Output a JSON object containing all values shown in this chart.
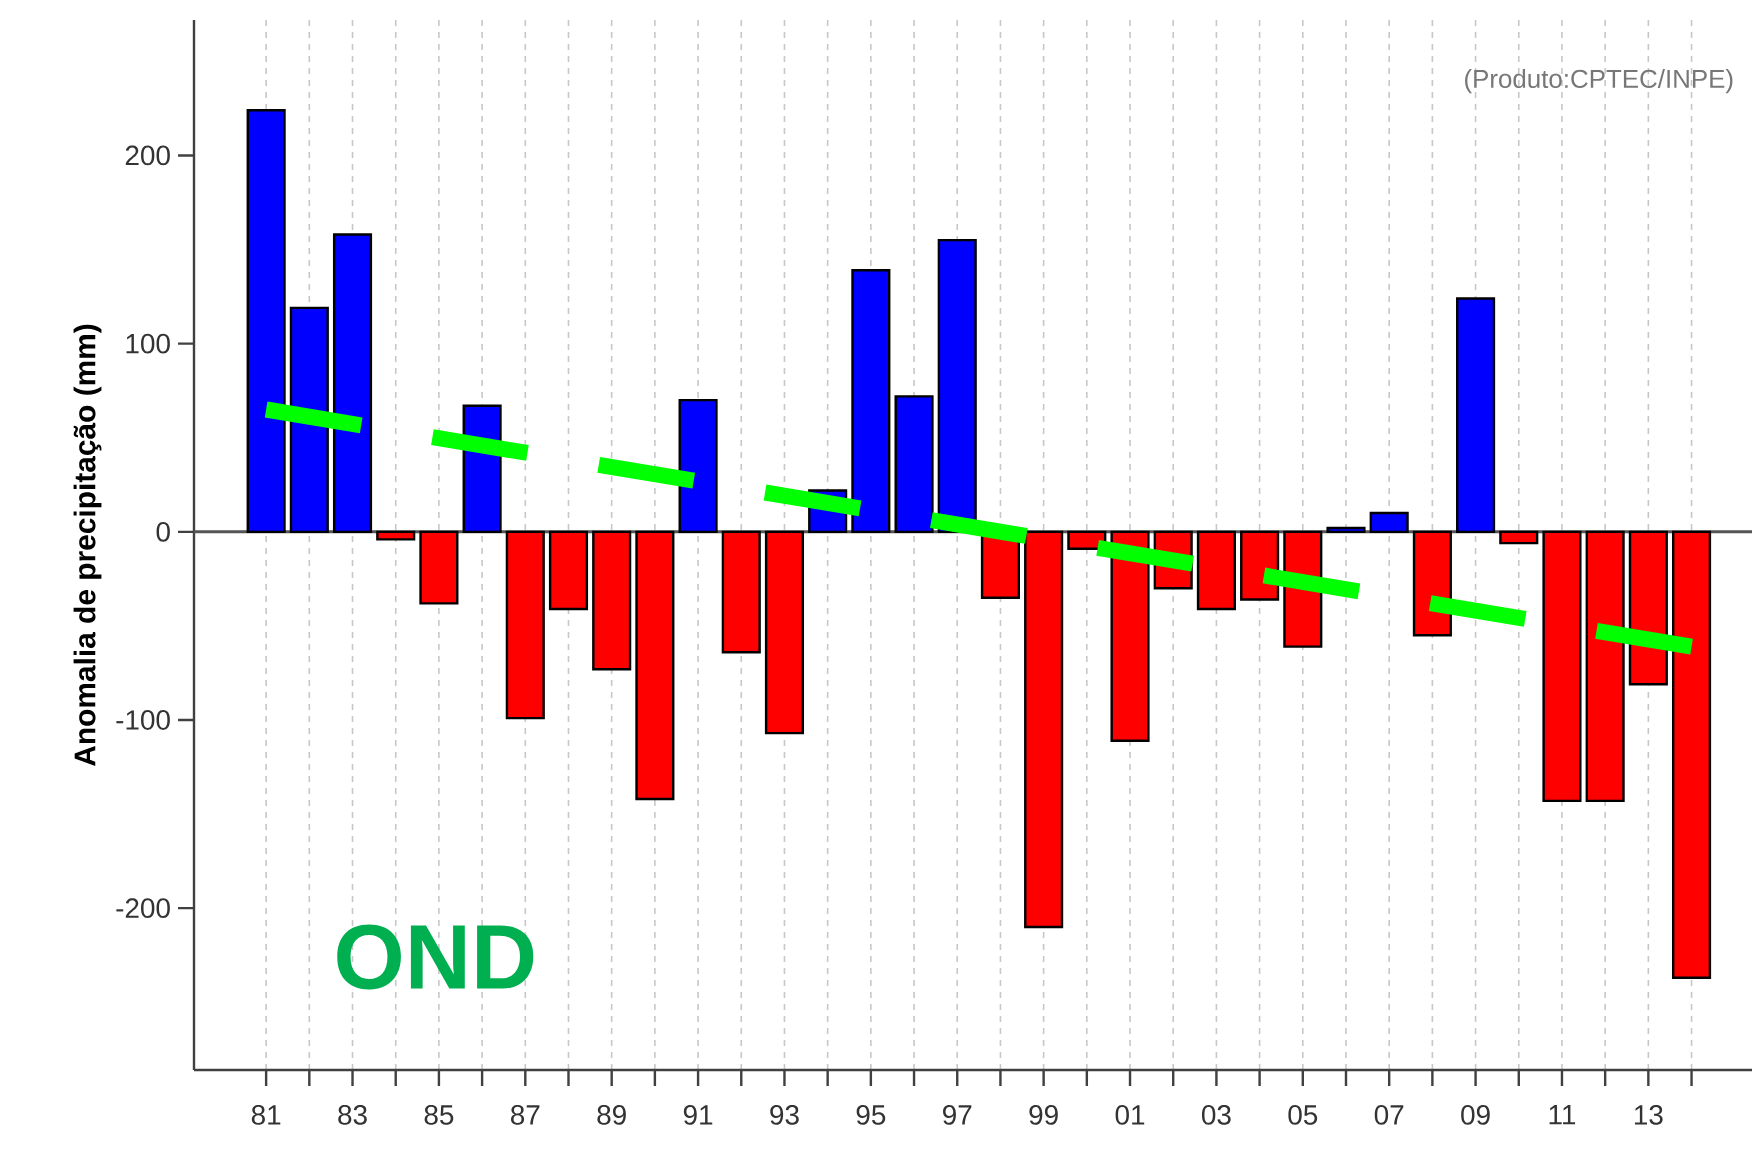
{
  "chart_data": {
    "type": "bar",
    "ylabel": "Anomalia de precipitação (mm)",
    "annotations": [
      "(Produto:CPTEC/INPE)",
      "OND"
    ],
    "x": [
      1981,
      1982,
      1983,
      1984,
      1985,
      1986,
      1987,
      1988,
      1989,
      1990,
      1991,
      1992,
      1993,
      1994,
      1995,
      1996,
      1997,
      1998,
      1999,
      2000,
      2001,
      2002,
      2003,
      2004,
      2005,
      2006,
      2007,
      2008,
      2009,
      2010,
      2011,
      2012,
      2013,
      2014
    ],
    "xlim": [
      1979.33,
      2015.4
    ],
    "xticks": [
      {
        "value": 1981,
        "label": "81"
      },
      {
        "value": 1982,
        "label": null
      },
      {
        "value": 1983,
        "label": "83"
      },
      {
        "value": 1984,
        "label": null
      },
      {
        "value": 1985,
        "label": "85"
      },
      {
        "value": 1986,
        "label": null
      },
      {
        "value": 1987,
        "label": "87"
      },
      {
        "value": 1988,
        "label": null
      },
      {
        "value": 1989,
        "label": "89"
      },
      {
        "value": 1990,
        "label": null
      },
      {
        "value": 1991,
        "label": "91"
      },
      {
        "value": 1992,
        "label": null
      },
      {
        "value": 1993,
        "label": "93"
      },
      {
        "value": 1994,
        "label": null
      },
      {
        "value": 1995,
        "label": "95"
      },
      {
        "value": 1996,
        "label": null
      },
      {
        "value": 1997,
        "label": "97"
      },
      {
        "value": 1998,
        "label": null
      },
      {
        "value": 1999,
        "label": "99"
      },
      {
        "value": 2000,
        "label": null
      },
      {
        "value": 2001,
        "label": "01"
      },
      {
        "value": 2002,
        "label": null
      },
      {
        "value": 2003,
        "label": "03"
      },
      {
        "value": 2004,
        "label": null
      },
      {
        "value": 2005,
        "label": "05"
      },
      {
        "value": 2006,
        "label": null
      },
      {
        "value": 2007,
        "label": "07"
      },
      {
        "value": 2008,
        "label": null
      },
      {
        "value": 2009,
        "label": "09"
      },
      {
        "value": 2010,
        "label": null
      },
      {
        "value": 2011,
        "label": "11"
      },
      {
        "value": 2012,
        "label": null
      },
      {
        "value": 2013,
        "label": "13"
      },
      {
        "value": 2014,
        "label": null
      }
    ],
    "ylim": [
      -286,
      272
    ],
    "yticks": [
      -200,
      -100,
      0,
      100,
      200
    ],
    "grid": "x",
    "ref_lines": [
      {
        "axis": "y",
        "value": 0,
        "color": "#555555"
      }
    ],
    "series": [
      {
        "colors": [
          "#0000ff",
          "#0000ff",
          "#0000ff",
          "#ff0000",
          "#ff0000",
          "#0000ff",
          "#ff0000",
          "#ff0000",
          "#ff0000",
          "#ff0000",
          "#0000ff",
          "#ff0000",
          "#ff0000",
          "#0000ff",
          "#0000ff",
          "#0000ff",
          "#0000ff",
          "#ff0000",
          "#ff0000",
          "#ff0000",
          "#ff0000",
          "#ff0000",
          "#ff0000",
          "#ff0000",
          "#ff0000",
          "#0000ff",
          "#0000ff",
          "#ff0000",
          "#0000ff",
          "#ff0000",
          "#ff0000",
          "#ff0000",
          "#ff0000",
          "#ff0000"
        ],
        "values": [
          224,
          119,
          158,
          -4,
          -38,
          67,
          -99,
          -41,
          -73,
          -142,
          70,
          -64,
          -107,
          22,
          139,
          72,
          155,
          -35,
          -210,
          -9,
          -111,
          -30,
          -41,
          -36,
          -61,
          2,
          10,
          -55,
          124,
          -6,
          -143,
          -143,
          -81,
          -237
        ]
      },
      {
        "type": "line",
        "x": [
          1981,
          2014
        ],
        "values": [
          65,
          -61
        ],
        "color": "#00ff00",
        "line_style": "dashed"
      }
    ]
  }
}
